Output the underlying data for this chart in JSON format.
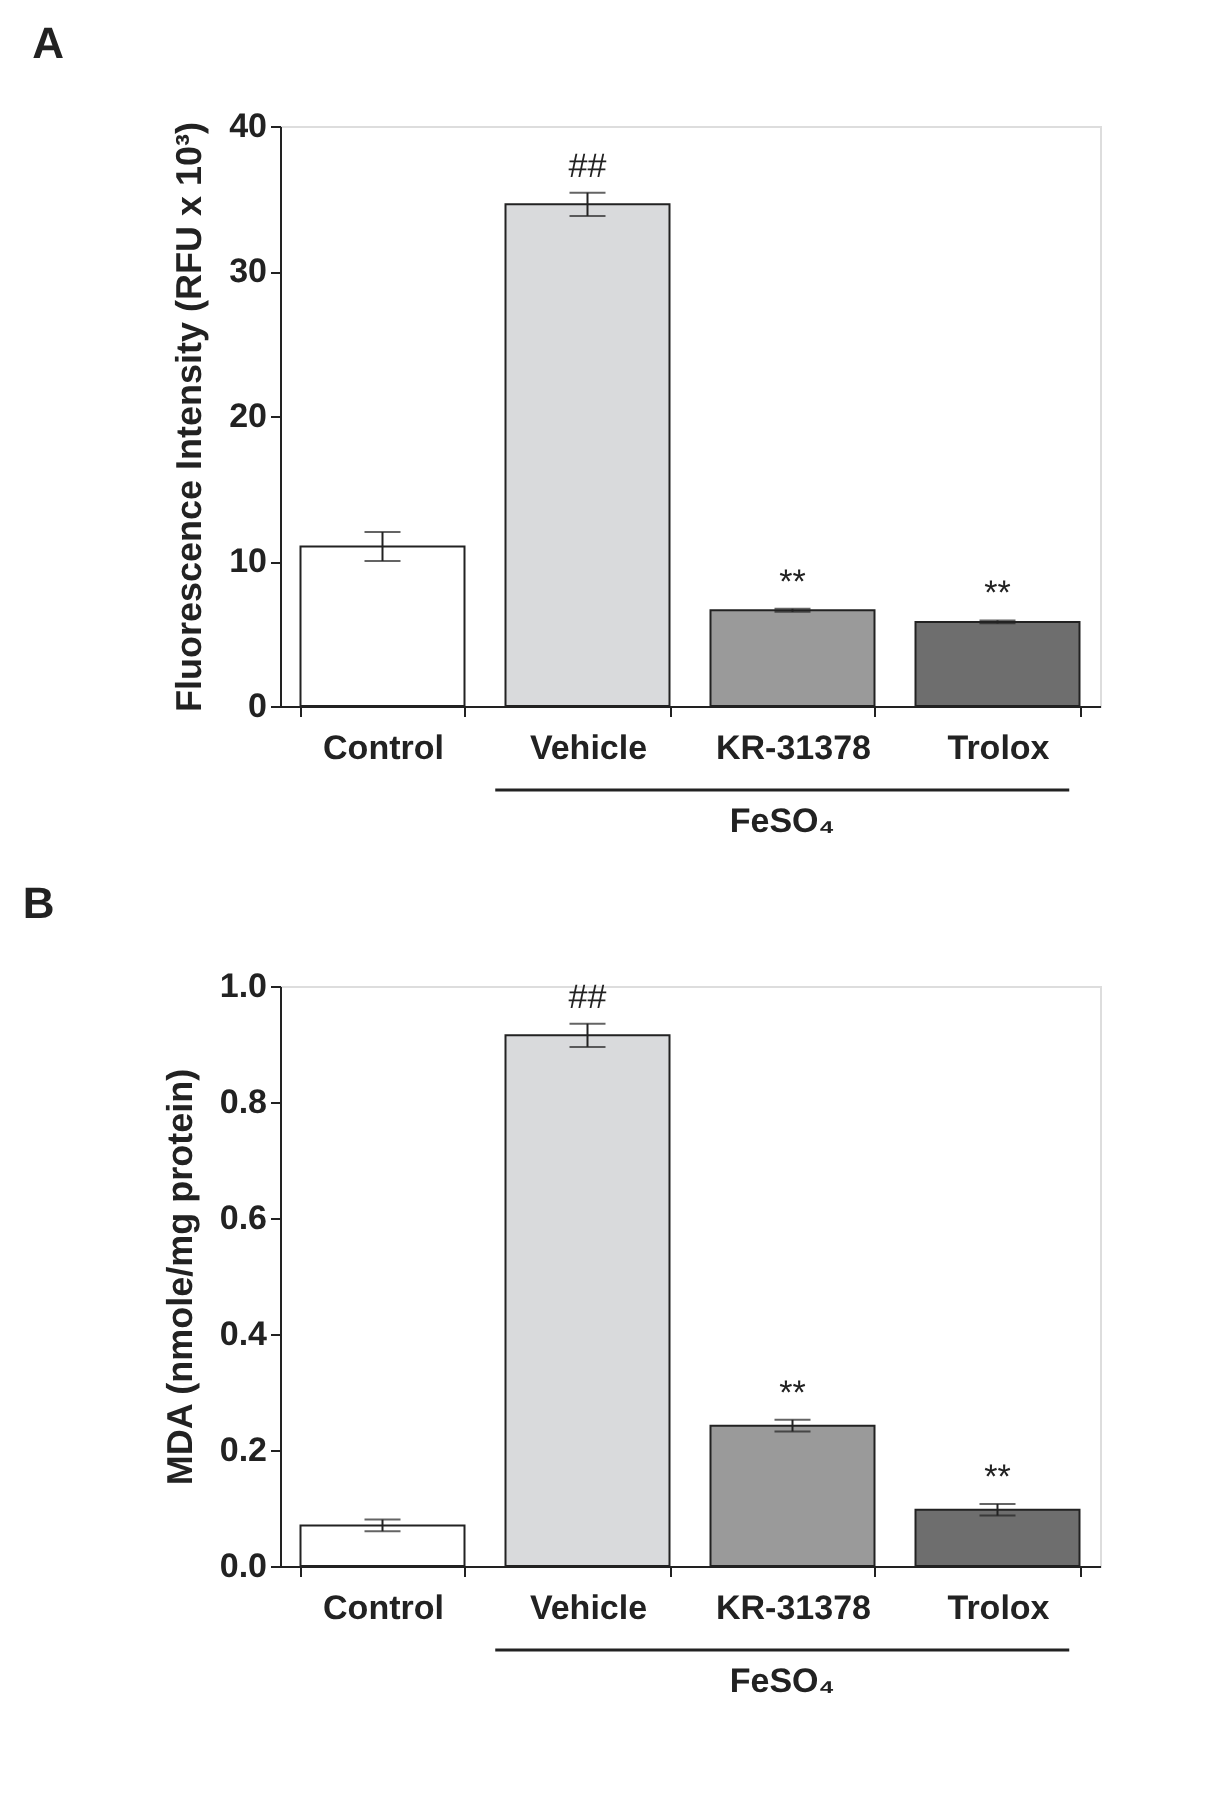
{
  "chart_data": [
    {
      "type": "bar",
      "title": "A",
      "ylabel": "Fluorescence Intensity (RFU x 10³)",
      "categories": [
        "Control",
        "Vehicle",
        "KR-31378",
        "Trolox"
      ],
      "values": [
        11.0,
        34.6,
        6.6,
        5.8
      ],
      "errors": [
        1.0,
        0.8,
        0.1,
        0.1
      ],
      "colors": [
        "#ffffff",
        "#d9dadc",
        "#9a9a9a",
        "#6e6e6e"
      ],
      "ylim": [
        0,
        40
      ],
      "yticks": [
        0,
        10,
        20,
        30,
        40
      ],
      "grid": false,
      "annotations": [
        {
          "text": "##",
          "x": "Vehicle",
          "y": 35.4
        },
        {
          "text": "**",
          "x": "KR-31378",
          "y": 6.7
        },
        {
          "text": "**",
          "x": "Trolox",
          "y": 5.9
        },
        "FeSO₄"
      ]
    },
    {
      "type": "bar",
      "title": "B",
      "ylabel": "MDA (nmole/mg protein)",
      "categories": [
        "Control",
        "Vehicle",
        "KR-31378",
        "Trolox"
      ],
      "values": [
        0.07,
        0.915,
        0.242,
        0.097
      ],
      "errors": [
        0.01,
        0.02,
        0.01,
        0.01
      ],
      "colors": [
        "#ffffff",
        "#d9dadc",
        "#9a9a9a",
        "#6e6e6e"
      ],
      "ylim": [
        0,
        1.0
      ],
      "yticks": [
        {
          "value": 0,
          "label": "0.0"
        },
        0.2,
        0.4,
        0.6,
        0.8,
        {
          "value": 1.0,
          "label": "1.0"
        }
      ],
      "grid": false,
      "annotations": [
        {
          "text": "##",
          "x": "Vehicle",
          "y": 0.935
        },
        {
          "text": "**",
          "x": "KR-31378",
          "y": 0.252
        },
        {
          "text": "**",
          "x": "Trolox",
          "y": 0.107
        },
        "FeSO₄"
      ]
    }
  ]
}
